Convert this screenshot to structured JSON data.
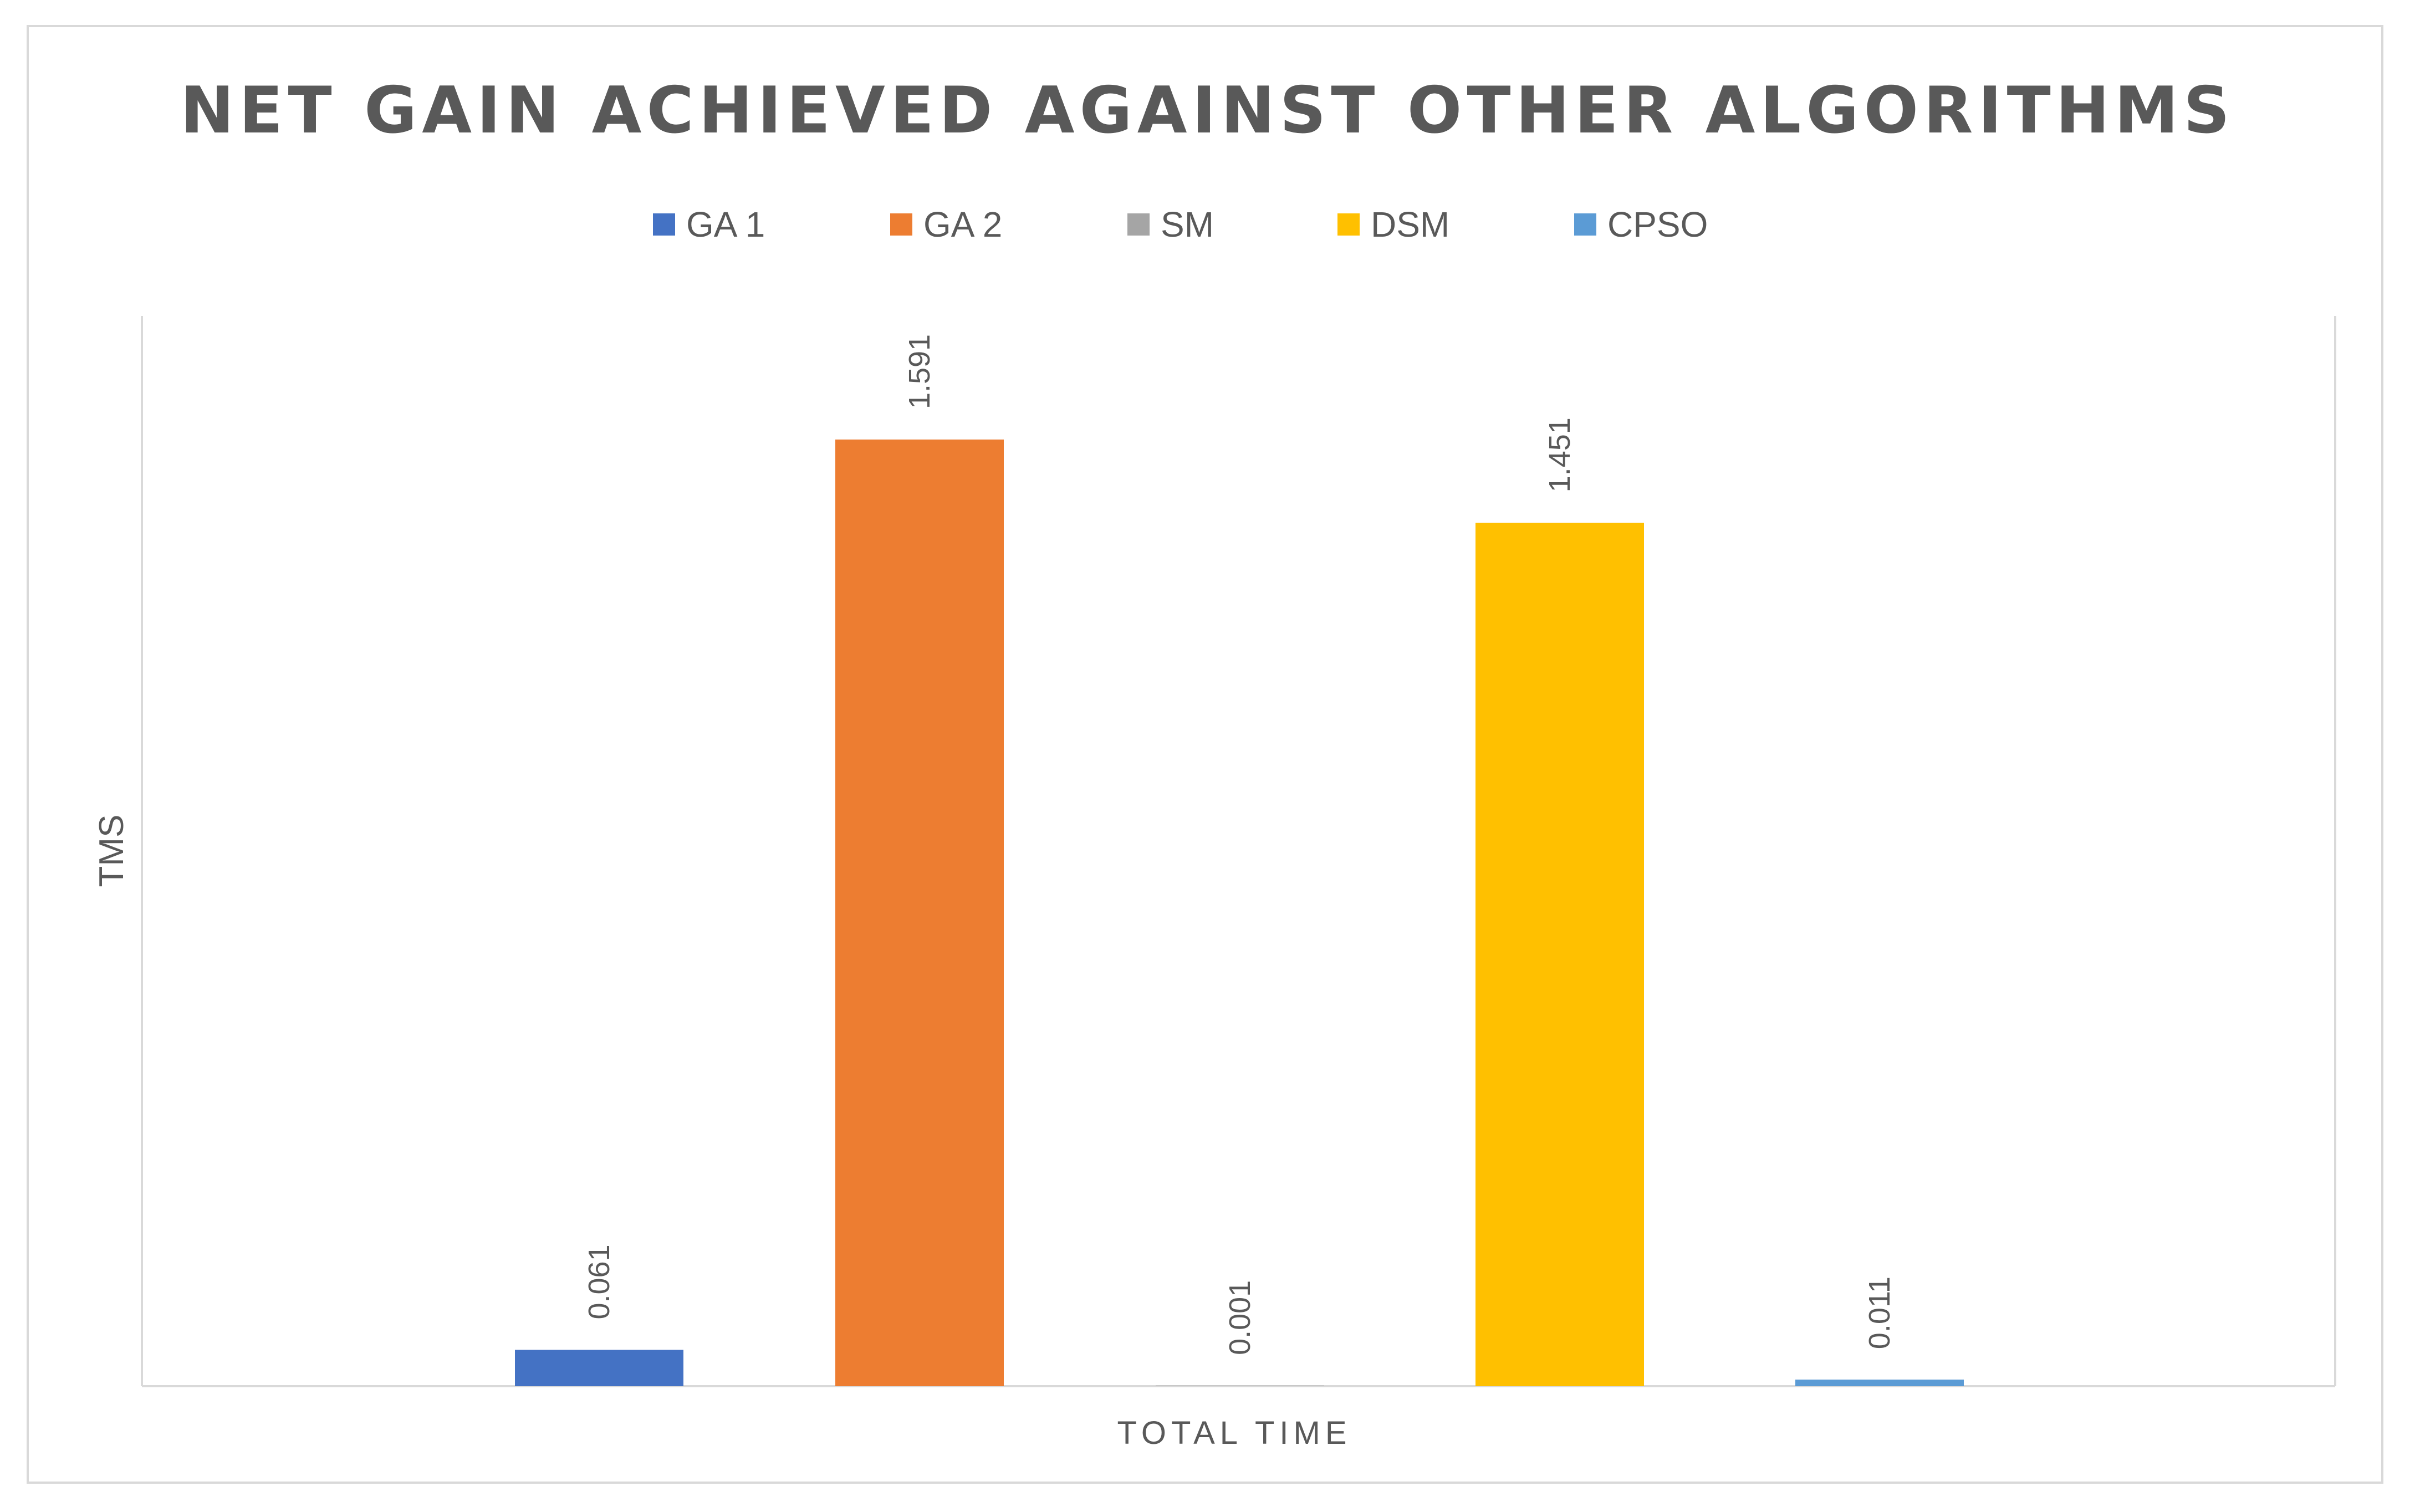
{
  "chart_data": {
    "type": "bar",
    "title": "NET GAIN ACHIEVED AGAINST OTHER ALGORITHMS",
    "categories": [
      "TOTAL TIME"
    ],
    "xlabel": "TOTAL TIME",
    "ylabel": "TMS",
    "ylim": [
      0,
      1.8
    ],
    "grid": false,
    "legend_position": "top",
    "series": [
      {
        "name": "GA 1",
        "values": [
          0.061
        ],
        "label": "0.061",
        "color": "#4472C4"
      },
      {
        "name": "GA 2",
        "values": [
          1.591
        ],
        "label": "1.591",
        "color": "#ED7D31"
      },
      {
        "name": "SM",
        "values": [
          0.001
        ],
        "label": "0.001",
        "color": "#A5A5A5"
      },
      {
        "name": "DSM",
        "values": [
          1.451
        ],
        "label": "1.451",
        "color": "#FFC000"
      },
      {
        "name": "CPSO",
        "values": [
          0.011
        ],
        "label": "0.011",
        "color": "#5B9BD5"
      }
    ]
  }
}
